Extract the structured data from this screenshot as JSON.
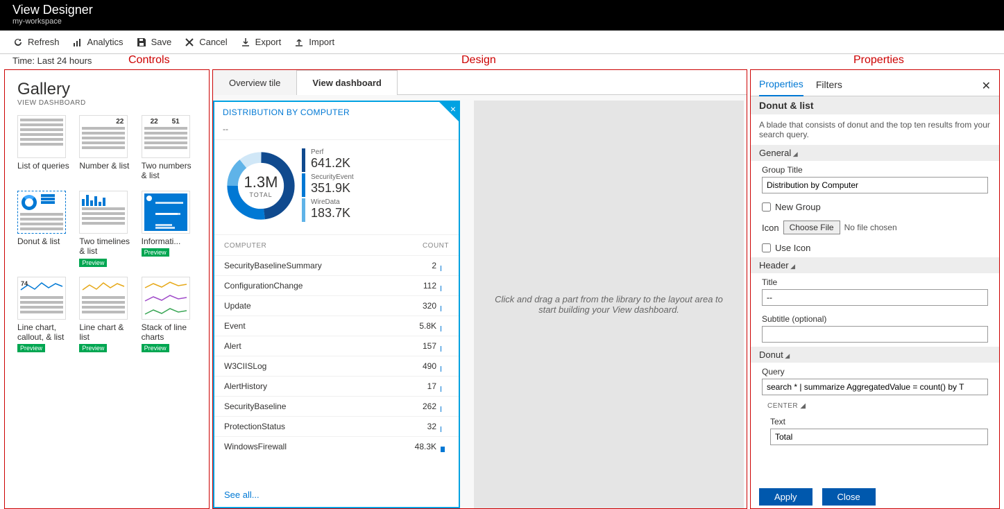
{
  "header": {
    "title": "View Designer",
    "workspace": "my-workspace"
  },
  "toolbar": {
    "refresh": "Refresh",
    "analytics": "Analytics",
    "save": "Save",
    "cancel": "Cancel",
    "export": "Export",
    "import": "Import"
  },
  "time_label": "Time: Last 24 hours",
  "region_labels": {
    "controls": "Controls",
    "design": "Design",
    "properties": "Properties"
  },
  "gallery": {
    "title": "Gallery",
    "subtitle": "VIEW DASHBOARD",
    "items": [
      {
        "label": "List of queries",
        "kind": "list",
        "preview": false,
        "selected": false
      },
      {
        "label": "Number & list",
        "kind": "number",
        "num1": "22",
        "preview": false,
        "selected": false
      },
      {
        "label": "Two numbers & list",
        "kind": "twonum",
        "num1": "22",
        "num2": "51",
        "preview": false,
        "selected": false
      },
      {
        "label": "Donut & list",
        "kind": "donut",
        "preview": false,
        "selected": true
      },
      {
        "label": "Two timelines & list",
        "kind": "twotime",
        "preview": true,
        "selected": false
      },
      {
        "label": "Informati...",
        "kind": "info",
        "preview": true,
        "selected": false
      },
      {
        "label": "Line chart, callout, & list",
        "kind": "linecallout",
        "callout": "74",
        "preview": true,
        "selected": false,
        "color": "#0078d4"
      },
      {
        "label": "Line chart & list",
        "kind": "linechart",
        "preview": true,
        "selected": false,
        "color": "#e6a817"
      },
      {
        "label": "Stack of line charts",
        "kind": "stacklines",
        "preview": true,
        "selected": false
      }
    ]
  },
  "design": {
    "tabs": {
      "overview": "Overview tile",
      "dashboard": "View dashboard"
    },
    "tile": {
      "header": "DISTRIBUTION BY COMPUTER",
      "subheader": "--",
      "donut": {
        "center_value": "1.3M",
        "center_label": "TOTAL",
        "segments": [
          {
            "label": "Perf",
            "value": "641.2K",
            "color": "#104a8e",
            "pct": 48
          },
          {
            "label": "SecurityEvent",
            "value": "351.9K",
            "color": "#0078d4",
            "pct": 27
          },
          {
            "label": "WireData",
            "value": "183.7K",
            "color": "#5fb3e8",
            "pct": 14
          }
        ],
        "remainder_color": "#d0e7f7"
      },
      "list": {
        "col1": "COMPUTER",
        "col2": "COUNT",
        "rows": [
          {
            "name": "SecurityBaselineSummary",
            "count": "2",
            "bar": 1
          },
          {
            "name": "ConfigurationChange",
            "count": "112",
            "bar": 1
          },
          {
            "name": "Update",
            "count": "320",
            "bar": 1
          },
          {
            "name": "Event",
            "count": "5.8K",
            "bar": 1
          },
          {
            "name": "Alert",
            "count": "157",
            "bar": 1
          },
          {
            "name": "W3CIISLog",
            "count": "490",
            "bar": 1
          },
          {
            "name": "AlertHistory",
            "count": "17",
            "bar": 1
          },
          {
            "name": "SecurityBaseline",
            "count": "262",
            "bar": 1
          },
          {
            "name": "ProtectionStatus",
            "count": "32",
            "bar": 1
          },
          {
            "name": "WindowsFirewall",
            "count": "48.3K",
            "bar": 6
          }
        ],
        "see_all": "See all..."
      }
    },
    "drop_hint": "Click and drag a part from the library to the layout area to start building your View dashboard."
  },
  "props": {
    "tabs": {
      "properties": "Properties",
      "filters": "Filters"
    },
    "title": "Donut & list",
    "desc": "A blade that consists of donut and the top ten results from your search query.",
    "general": {
      "hdr": "General",
      "group_title_lbl": "Group Title",
      "group_title_val": "Distribution by Computer",
      "new_group": "New Group",
      "icon_lbl": "Icon",
      "choose_file": "Choose File",
      "no_file": "No file chosen",
      "use_icon": "Use Icon"
    },
    "header_sec": {
      "hdr": "Header",
      "title_lbl": "Title",
      "title_val": "--",
      "subtitle_lbl": "Subtitle (optional)",
      "subtitle_val": ""
    },
    "donut_sec": {
      "hdr": "Donut",
      "query_lbl": "Query",
      "query_val": "search * | summarize AggregatedValue = count() by T",
      "center_hdr": "CENTER",
      "text_lbl": "Text",
      "text_val": "Total"
    },
    "footer": {
      "apply": "Apply",
      "close": "Close"
    }
  },
  "colors": {
    "accent": "#0078d4",
    "tile_border": "#00a2e2",
    "red": "#c00",
    "preview_badge": "#00a651",
    "btn": "#0058ad"
  }
}
